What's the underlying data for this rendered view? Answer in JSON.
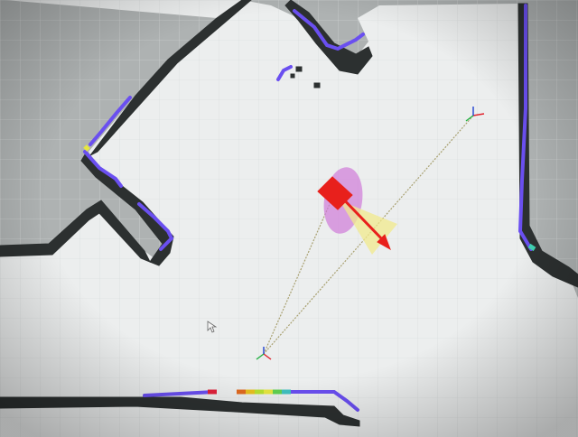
{
  "viewer": {
    "colors": {
      "unknown_area": "#aeb2b2",
      "free_space": "#eceeee",
      "obstacle": "#2c3030",
      "laser_scan": "#6a4ff0",
      "robot_marker": "#e8201c",
      "covariance_ellipse": "#d07ad8",
      "heading_cone": "#f2e98c",
      "trajectory_line": "#a8a070",
      "grid_line": "#d6d9d9"
    },
    "icons": {
      "pose_marker": "arrow-icon",
      "frame_axes": "tf-axes-icon",
      "mouse_cursor": "cursor-icon"
    }
  }
}
